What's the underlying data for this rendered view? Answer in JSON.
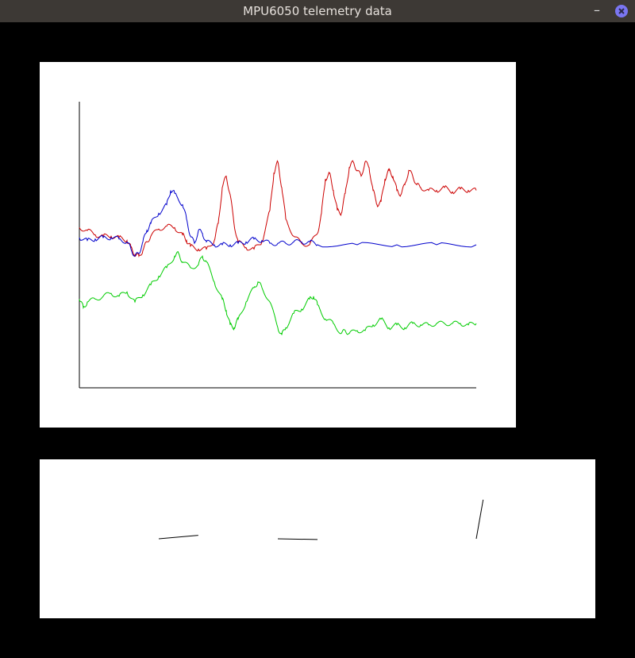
{
  "window": {
    "title": "MPU6050 telemetry data",
    "minimize_label": "–",
    "close_icon": "close-icon"
  },
  "colors": {
    "titlebar": "#3d3935",
    "accel_x": "#cc0000",
    "accel_y": "#0000cc",
    "accel_z": "#00cc00",
    "close_button": "#7a76f2"
  },
  "chart_data": {
    "type": "line",
    "title": "",
    "xlabel": "",
    "ylabel": "",
    "xlim": [
      0,
      100
    ],
    "ylim": [
      -100,
      100
    ],
    "grid": false,
    "legend": "none",
    "series": [
      {
        "color": "#cc0000",
        "points": [
          [
            0,
            12
          ],
          [
            2,
            10
          ],
          [
            4,
            7
          ],
          [
            6,
            6
          ],
          [
            8,
            6
          ],
          [
            10,
            5
          ],
          [
            12,
            3
          ],
          [
            13,
            -2
          ],
          [
            14,
            -7
          ],
          [
            15,
            -8
          ],
          [
            16,
            -4
          ],
          [
            17,
            2
          ],
          [
            18,
            6
          ],
          [
            20,
            11
          ],
          [
            22,
            13
          ],
          [
            24,
            12
          ],
          [
            26,
            7
          ],
          [
            27,
            3
          ],
          [
            28,
            -1
          ],
          [
            30,
            -3
          ],
          [
            32,
            -3
          ],
          [
            34,
            3
          ],
          [
            35,
            15
          ],
          [
            36,
            40
          ],
          [
            37,
            48
          ],
          [
            38,
            35
          ],
          [
            39,
            14
          ],
          [
            40,
            2
          ],
          [
            42,
            -2
          ],
          [
            44,
            -3
          ],
          [
            46,
            2
          ],
          [
            48,
            24
          ],
          [
            49,
            50
          ],
          [
            50,
            58
          ],
          [
            51,
            40
          ],
          [
            52,
            18
          ],
          [
            54,
            6
          ],
          [
            56,
            1
          ],
          [
            58,
            0
          ],
          [
            60,
            8
          ],
          [
            61,
            22
          ],
          [
            62,
            46
          ],
          [
            63,
            50
          ],
          [
            64,
            38
          ],
          [
            65,
            24
          ],
          [
            66,
            22
          ],
          [
            67,
            36
          ],
          [
            68,
            54
          ],
          [
            69,
            58
          ],
          [
            70,
            52
          ],
          [
            71,
            48
          ],
          [
            72,
            58
          ],
          [
            73,
            54
          ],
          [
            74,
            38
          ],
          [
            75,
            28
          ],
          [
            76,
            30
          ],
          [
            77,
            46
          ],
          [
            78,
            52
          ],
          [
            79,
            48
          ],
          [
            80,
            38
          ],
          [
            81,
            35
          ],
          [
            82,
            42
          ],
          [
            83,
            52
          ],
          [
            84,
            48
          ],
          [
            85,
            42
          ],
          [
            86,
            40
          ],
          [
            88,
            38
          ],
          [
            90,
            38
          ],
          [
            92,
            40
          ],
          [
            94,
            37
          ],
          [
            96,
            39
          ],
          [
            98,
            38
          ],
          [
            100,
            38
          ]
        ]
      },
      {
        "color": "#0000cc",
        "points": [
          [
            0,
            5
          ],
          [
            2,
            3
          ],
          [
            4,
            4
          ],
          [
            6,
            5
          ],
          [
            8,
            5
          ],
          [
            10,
            4
          ],
          [
            12,
            2
          ],
          [
            13,
            -3
          ],
          [
            14,
            -8
          ],
          [
            15,
            -6
          ],
          [
            16,
            2
          ],
          [
            17,
            10
          ],
          [
            18,
            15
          ],
          [
            20,
            22
          ],
          [
            22,
            28
          ],
          [
            23,
            38
          ],
          [
            24,
            36
          ],
          [
            26,
            28
          ],
          [
            27,
            18
          ],
          [
            28,
            6
          ],
          [
            29,
            1
          ],
          [
            30,
            10
          ],
          [
            31,
            8
          ],
          [
            32,
            2
          ],
          [
            34,
            0
          ],
          [
            36,
            0
          ],
          [
            38,
            0
          ],
          [
            40,
            1
          ],
          [
            42,
            2
          ],
          [
            44,
            4
          ],
          [
            46,
            3
          ],
          [
            48,
            1
          ],
          [
            50,
            1
          ],
          [
            52,
            1
          ],
          [
            54,
            2
          ],
          [
            56,
            2
          ],
          [
            58,
            2
          ],
          [
            60,
            0
          ],
          [
            70,
            0
          ],
          [
            80,
            0
          ],
          [
            90,
            0
          ],
          [
            100,
            0
          ]
        ]
      },
      {
        "color": "#00cc00",
        "points": [
          [
            0,
            -38
          ],
          [
            1,
            -44
          ],
          [
            2,
            -40
          ],
          [
            4,
            -38
          ],
          [
            6,
            -36
          ],
          [
            8,
            -34
          ],
          [
            10,
            -36
          ],
          [
            12,
            -33
          ],
          [
            14,
            -40
          ],
          [
            16,
            -35
          ],
          [
            18,
            -28
          ],
          [
            20,
            -22
          ],
          [
            22,
            -16
          ],
          [
            24,
            -8
          ],
          [
            25,
            -6
          ],
          [
            26,
            -12
          ],
          [
            28,
            -16
          ],
          [
            30,
            -14
          ],
          [
            31,
            -8
          ],
          [
            32,
            -12
          ],
          [
            34,
            -26
          ],
          [
            36,
            -38
          ],
          [
            37,
            -46
          ],
          [
            38,
            -56
          ],
          [
            39,
            -58
          ],
          [
            40,
            -52
          ],
          [
            42,
            -40
          ],
          [
            44,
            -30
          ],
          [
            45,
            -26
          ],
          [
            46,
            -30
          ],
          [
            48,
            -40
          ],
          [
            50,
            -58
          ],
          [
            51,
            -63
          ],
          [
            52,
            -58
          ],
          [
            54,
            -48
          ],
          [
            56,
            -45
          ],
          [
            58,
            -38
          ],
          [
            59,
            -36
          ],
          [
            60,
            -42
          ],
          [
            62,
            -52
          ],
          [
            64,
            -55
          ],
          [
            66,
            -62
          ],
          [
            67,
            -60
          ],
          [
            68,
            -62
          ],
          [
            70,
            -60
          ],
          [
            72,
            -60
          ],
          [
            74,
            -56
          ],
          [
            76,
            -52
          ],
          [
            78,
            -58
          ],
          [
            80,
            -56
          ],
          [
            82,
            -58
          ],
          [
            84,
            -55
          ],
          [
            86,
            -56
          ],
          [
            88,
            -56
          ],
          [
            90,
            -55
          ],
          [
            92,
            -55
          ],
          [
            94,
            -55
          ],
          [
            96,
            -55
          ],
          [
            98,
            -56
          ],
          [
            100,
            -55
          ]
        ]
      }
    ]
  },
  "orientation": {
    "pointers": [
      {
        "angle_deg": -5
      },
      {
        "angle_deg": 1
      },
      {
        "angle_deg": -80
      }
    ]
  }
}
